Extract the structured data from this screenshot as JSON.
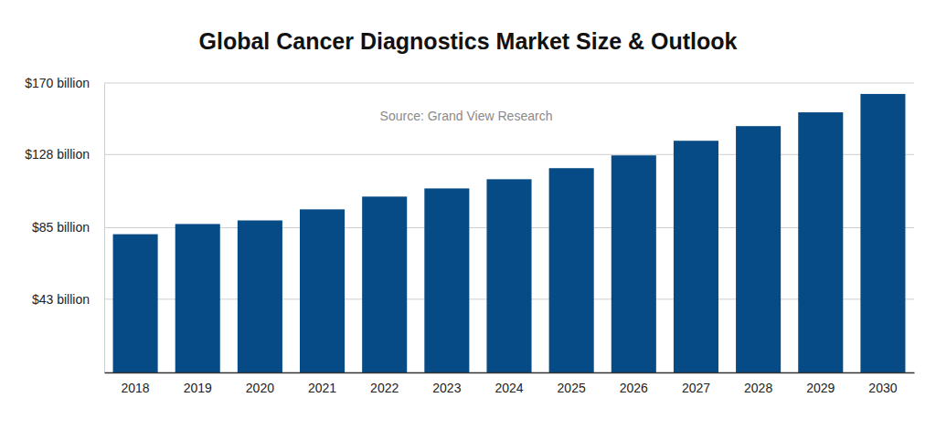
{
  "chart_data": {
    "type": "bar",
    "title": "Global Cancer Diagnostics Market Size & Outlook",
    "annotations": [
      "Source: Grand View Research"
    ],
    "categories": [
      "2018",
      "2019",
      "2020",
      "2021",
      "2022",
      "2023",
      "2024",
      "2025",
      "2026",
      "2027",
      "2028",
      "2029",
      "2030"
    ],
    "values": [
      81.2,
      87.2,
      89.3,
      95.8,
      103.3,
      108.1,
      113.5,
      120.0,
      127.5,
      136.1,
      144.7,
      152.8,
      163.6
    ],
    "color": "#064b85",
    "ylim": [
      0,
      170
    ],
    "yticks": [
      {
        "value": 43,
        "label": "$43 billion"
      },
      {
        "value": 85,
        "label": "$85 billion"
      },
      {
        "value": 128,
        "label": "$128 billion"
      },
      {
        "value": 170,
        "label": "$170 billion"
      }
    ],
    "grid": true
  }
}
